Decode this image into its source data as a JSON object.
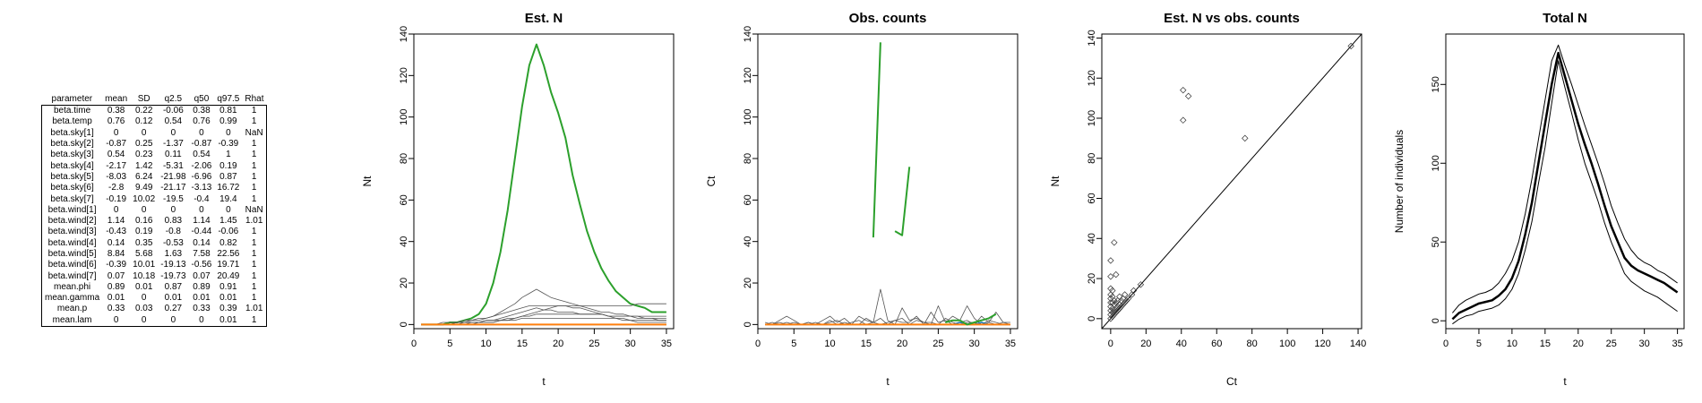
{
  "table": {
    "headers": [
      "parameter",
      "mean",
      "SD",
      "q2.5",
      "q50",
      "q97.5",
      "Rhat"
    ],
    "rows": [
      [
        "beta.time",
        "0.38",
        "0.22",
        "-0.06",
        "0.38",
        "0.81",
        "1"
      ],
      [
        "beta.temp",
        "0.76",
        "0.12",
        "0.54",
        "0.76",
        "0.99",
        "1"
      ],
      [
        "beta.sky[1]",
        "0",
        "0",
        "0",
        "0",
        "0",
        "NaN"
      ],
      [
        "beta.sky[2]",
        "-0.87",
        "0.25",
        "-1.37",
        "-0.87",
        "-0.39",
        "1"
      ],
      [
        "beta.sky[3]",
        "0.54",
        "0.23",
        "0.11",
        "0.54",
        "1",
        "1"
      ],
      [
        "beta.sky[4]",
        "-2.17",
        "1.42",
        "-5.31",
        "-2.06",
        "0.19",
        "1"
      ],
      [
        "beta.sky[5]",
        "-8.03",
        "6.24",
        "-21.98",
        "-6.96",
        "0.87",
        "1"
      ],
      [
        "beta.sky[6]",
        "-2.8",
        "9.49",
        "-21.17",
        "-3.13",
        "16.72",
        "1"
      ],
      [
        "beta.sky[7]",
        "-0.19",
        "10.02",
        "-19.5",
        "-0.4",
        "19.4",
        "1"
      ],
      [
        "beta.wind[1]",
        "0",
        "0",
        "0",
        "0",
        "0",
        "NaN"
      ],
      [
        "beta.wind[2]",
        "1.14",
        "0.16",
        "0.83",
        "1.14",
        "1.45",
        "1.01"
      ],
      [
        "beta.wind[3]",
        "-0.43",
        "0.19",
        "-0.8",
        "-0.44",
        "-0.06",
        "1"
      ],
      [
        "beta.wind[4]",
        "0.14",
        "0.35",
        "-0.53",
        "0.14",
        "0.82",
        "1"
      ],
      [
        "beta.wind[5]",
        "8.84",
        "5.68",
        "1.63",
        "7.58",
        "22.56",
        "1"
      ],
      [
        "beta.wind[6]",
        "-0.39",
        "10.01",
        "-19.13",
        "-0.56",
        "19.71",
        "1"
      ],
      [
        "beta.wind[7]",
        "0.07",
        "10.18",
        "-19.73",
        "0.07",
        "20.49",
        "1"
      ],
      [
        "mean.phi",
        "0.89",
        "0.01",
        "0.87",
        "0.89",
        "0.91",
        "1"
      ],
      [
        "mean.gamma",
        "0.01",
        "0",
        "0.01",
        "0.01",
        "0.01",
        "1"
      ],
      [
        "mean.p",
        "0.33",
        "0.03",
        "0.27",
        "0.33",
        "0.39",
        "1.01"
      ],
      [
        "mean.lam",
        "0",
        "0",
        "0",
        "0",
        "0.01",
        "1"
      ]
    ]
  },
  "chart_data": [
    {
      "type": "line",
      "title": "Est. N",
      "xlabel": "t",
      "ylabel": "Nt",
      "xlim": [
        0,
        36
      ],
      "ylim": [
        -2,
        140
      ],
      "xticks": [
        0,
        5,
        10,
        15,
        20,
        25,
        30,
        35
      ],
      "yticks": [
        0,
        20,
        40,
        60,
        80,
        100,
        120,
        140
      ],
      "grid": false,
      "x": [
        1,
        2,
        3,
        4,
        5,
        6,
        7,
        8,
        9,
        10,
        11,
        12,
        13,
        14,
        15,
        16,
        17,
        18,
        19,
        20,
        21,
        22,
        23,
        24,
        25,
        26,
        27,
        28,
        29,
        30,
        31,
        32,
        33,
        34,
        35
      ],
      "series": [
        {
          "color": "#2ca02c",
          "width": 2,
          "values": [
            0,
            0,
            0,
            0,
            1,
            1,
            2,
            3,
            5,
            10,
            20,
            35,
            55,
            80,
            105,
            125,
            135,
            125,
            112,
            102,
            90,
            72,
            58,
            45,
            35,
            27,
            21,
            16,
            13,
            10,
            9,
            8,
            6,
            6,
            6
          ]
        },
        {
          "color": "#555555",
          "width": 0.8,
          "values": [
            0,
            0,
            0,
            0,
            0,
            1,
            1,
            2,
            2,
            3,
            4,
            6,
            8,
            10,
            13,
            15,
            17,
            15,
            13,
            12,
            11,
            10,
            9,
            8,
            7,
            6,
            6,
            5,
            5,
            4,
            4,
            3,
            3,
            2,
            2
          ]
        },
        {
          "color": "#555555",
          "width": 0.8,
          "values": [
            0,
            0,
            0,
            1,
            1,
            1,
            2,
            2,
            3,
            3,
            4,
            5,
            6,
            7,
            8,
            9,
            9,
            9,
            9,
            9,
            9,
            9,
            9,
            9,
            9,
            9,
            9,
            9,
            9,
            9,
            10,
            10,
            10,
            10,
            10
          ]
        },
        {
          "color": "#555555",
          "width": 0.8,
          "values": [
            0,
            0,
            0,
            0,
            0,
            0,
            1,
            1,
            1,
            2,
            2,
            3,
            4,
            5,
            6,
            7,
            8,
            7,
            7,
            6,
            6,
            6,
            5,
            5,
            5,
            5,
            4,
            4,
            4,
            4,
            3,
            3,
            3,
            3,
            3
          ]
        },
        {
          "color": "#555555",
          "width": 0.8,
          "values": [
            0,
            0,
            0,
            0,
            0,
            1,
            1,
            1,
            1,
            2,
            2,
            2,
            3,
            3,
            4,
            4,
            5,
            5,
            5,
            5,
            5,
            5,
            5,
            5,
            5,
            5,
            4,
            4,
            4,
            4,
            4,
            4,
            4,
            4,
            4
          ]
        },
        {
          "color": "#555555",
          "width": 0.8,
          "values": [
            0,
            0,
            0,
            0,
            0,
            0,
            0,
            0,
            1,
            1,
            1,
            2,
            2,
            3,
            4,
            5,
            6,
            7,
            8,
            9,
            9,
            8,
            8,
            7,
            6,
            5,
            4,
            3,
            2,
            2,
            1,
            1,
            1,
            1,
            1
          ]
        },
        {
          "color": "#555555",
          "width": 0.8,
          "values": [
            0,
            0,
            0,
            0,
            0,
            0,
            0,
            1,
            1,
            1,
            1,
            2,
            2,
            2,
            3,
            3,
            3,
            3,
            3,
            3,
            3,
            3,
            3,
            3,
            3,
            3,
            3,
            3,
            3,
            2,
            2,
            2,
            2,
            2,
            2
          ]
        },
        {
          "color": "#1f77b4",
          "width": 1.5,
          "values": [
            0,
            0,
            0,
            0,
            0,
            0,
            0,
            0,
            0,
            0,
            0,
            0,
            0,
            0,
            0,
            0,
            0,
            0,
            0,
            0,
            0,
            0,
            0,
            0,
            0,
            0,
            0,
            0,
            0,
            0,
            0,
            0,
            0,
            0,
            0
          ]
        },
        {
          "color": "#ff7f0e",
          "width": 2,
          "values": [
            0,
            0,
            0,
            0,
            0,
            0,
            0,
            0,
            0,
            0,
            0,
            0,
            0,
            0,
            0,
            0,
            0,
            0,
            0,
            0,
            0,
            0,
            0,
            0,
            0,
            0,
            0,
            0,
            0,
            0,
            0,
            0,
            0,
            0,
            0
          ]
        }
      ]
    },
    {
      "type": "line",
      "title": "Obs. counts",
      "xlabel": "t",
      "ylabel": "Ct",
      "xlim": [
        0,
        36
      ],
      "ylim": [
        -2,
        140
      ],
      "xticks": [
        0,
        5,
        10,
        15,
        20,
        25,
        30,
        35
      ],
      "yticks": [
        0,
        20,
        40,
        60,
        80,
        100,
        120,
        140
      ],
      "grid": false,
      "x": [
        1,
        2,
        3,
        4,
        5,
        6,
        7,
        8,
        9,
        10,
        11,
        12,
        13,
        14,
        15,
        16,
        17,
        18,
        19,
        20,
        21,
        22,
        23,
        24,
        25,
        26,
        27,
        28,
        29,
        30,
        31,
        32,
        33,
        34,
        35
      ],
      "series": [
        {
          "color": "#555555",
          "width": 0.8,
          "values": [
            1,
            0,
            2,
            4,
            2,
            0,
            1,
            0,
            2,
            4,
            1,
            3,
            0,
            4,
            2,
            1,
            17,
            2,
            0,
            8,
            2,
            3,
            1,
            0,
            9,
            1,
            4,
            2,
            9,
            3,
            0,
            1,
            6,
            1,
            1
          ]
        },
        {
          "color": "#555555",
          "width": 0.8,
          "values": [
            0,
            1,
            0,
            1,
            0,
            0,
            0,
            1,
            0,
            1,
            2,
            0,
            1,
            2,
            0,
            1,
            3,
            0,
            2,
            1,
            1,
            4,
            0,
            6,
            1,
            2,
            0,
            1,
            2,
            0,
            4,
            1,
            0,
            1,
            0
          ]
        },
        {
          "color": "#555555",
          "width": 0.8,
          "values": [
            0,
            0,
            1,
            0,
            1,
            0,
            1,
            0,
            0,
            2,
            0,
            1,
            0,
            0,
            3,
            1,
            0,
            1,
            2,
            3,
            0,
            2,
            1,
            1,
            0,
            3,
            1,
            0,
            1,
            1,
            0,
            2,
            1,
            0,
            0
          ]
        },
        {
          "color": "#1f77b4",
          "width": 1.5,
          "values": [
            0,
            0,
            0,
            0,
            0,
            0,
            0,
            0,
            0,
            0,
            0,
            0,
            0,
            0,
            0,
            0,
            0,
            0,
            0,
            0,
            0,
            0,
            0,
            0,
            0,
            0,
            0,
            1,
            0,
            0,
            1,
            0,
            0,
            0,
            0
          ]
        },
        {
          "color": "#ff7f0e",
          "width": 2,
          "values": [
            0,
            0,
            0,
            0,
            0,
            0,
            0,
            0,
            0,
            0,
            0,
            0,
            0,
            0,
            0,
            0,
            0,
            0,
            0,
            0,
            0,
            0,
            0,
            0,
            0,
            0,
            0,
            0,
            0,
            0,
            0,
            0,
            0,
            0,
            0
          ]
        },
        {
          "color": "#2ca02c",
          "width": 2,
          "values": [
            1,
            null,
            null,
            null,
            null,
            null,
            null,
            null,
            null,
            null,
            null,
            null,
            null,
            null,
            null,
            42,
            136,
            null,
            45,
            43,
            76,
            null,
            null,
            null,
            null,
            1,
            2,
            2,
            0,
            1,
            2,
            3,
            5,
            null,
            null
          ]
        }
      ]
    },
    {
      "type": "scatter",
      "title": "Est. N vs obs. counts",
      "xlabel": "Ct",
      "ylabel": "Nt",
      "xlim": [
        -5,
        142
      ],
      "ylim": [
        -5,
        142
      ],
      "xticks": [
        0,
        20,
        40,
        60,
        80,
        100,
        120,
        140
      ],
      "yticks": [
        0,
        20,
        40,
        60,
        80,
        100,
        120,
        140
      ],
      "grid": false,
      "reference_line": "y = x",
      "points": [
        [
          0,
          0
        ],
        [
          0,
          2
        ],
        [
          0,
          4
        ],
        [
          0,
          6
        ],
        [
          0,
          8
        ],
        [
          0,
          10
        ],
        [
          0,
          12
        ],
        [
          0,
          15
        ],
        [
          0,
          21
        ],
        [
          0,
          29
        ],
        [
          1,
          1
        ],
        [
          1,
          3
        ],
        [
          1,
          5
        ],
        [
          1,
          8
        ],
        [
          1,
          11
        ],
        [
          1,
          14
        ],
        [
          2,
          2
        ],
        [
          2,
          4
        ],
        [
          2,
          7
        ],
        [
          2,
          9
        ],
        [
          2,
          38
        ],
        [
          3,
          3
        ],
        [
          3,
          5
        ],
        [
          3,
          8
        ],
        [
          3,
          22
        ],
        [
          4,
          4
        ],
        [
          4,
          6
        ],
        [
          4,
          9
        ],
        [
          5,
          5
        ],
        [
          5,
          7
        ],
        [
          5,
          11
        ],
        [
          6,
          6
        ],
        [
          6,
          9
        ],
        [
          7,
          7
        ],
        [
          7,
          10
        ],
        [
          8,
          8
        ],
        [
          8,
          12
        ],
        [
          9,
          9
        ],
        [
          10,
          10
        ],
        [
          12,
          12
        ],
        [
          13,
          14
        ],
        [
          17,
          17
        ],
        [
          41,
          114
        ],
        [
          41,
          99
        ],
        [
          44,
          111
        ],
        [
          76,
          90
        ],
        [
          136,
          136
        ]
      ]
    },
    {
      "type": "line",
      "title": "Total N",
      "xlabel": "t",
      "ylabel": "Number of individuals",
      "xlim": [
        0,
        36
      ],
      "ylim": [
        -5,
        182
      ],
      "xticks": [
        0,
        5,
        10,
        15,
        20,
        25,
        30,
        35
      ],
      "yticks": [
        0,
        50,
        100,
        150
      ],
      "grid": false,
      "x": [
        1,
        2,
        3,
        4,
        5,
        6,
        7,
        8,
        9,
        10,
        11,
        12,
        13,
        14,
        15,
        16,
        17,
        18,
        19,
        20,
        21,
        22,
        23,
        24,
        25,
        26,
        27,
        28,
        29,
        30,
        31,
        32,
        33,
        34,
        35
      ],
      "series": [
        {
          "color": "#000000",
          "width": 2.5,
          "values": [
            1,
            5,
            7,
            9,
            11,
            12,
            13,
            16,
            20,
            27,
            38,
            55,
            75,
            100,
            125,
            150,
            170,
            155,
            140,
            125,
            112,
            100,
            87,
            73,
            60,
            50,
            40,
            35,
            32,
            30,
            28,
            26,
            24,
            21,
            18
          ]
        },
        {
          "color": "#000000",
          "width": 1,
          "values": [
            5,
            10,
            13,
            15,
            17,
            18,
            20,
            24,
            30,
            38,
            50,
            68,
            90,
            115,
            140,
            165,
            175,
            162,
            150,
            137,
            124,
            112,
            100,
            87,
            73,
            62,
            52,
            45,
            40,
            37,
            35,
            32,
            30,
            27,
            24
          ]
        },
        {
          "color": "#000000",
          "width": 1,
          "values": [
            -2,
            1,
            3,
            4,
            6,
            7,
            8,
            10,
            14,
            20,
            30,
            45,
            63,
            87,
            110,
            138,
            165,
            148,
            132,
            115,
            100,
            88,
            76,
            62,
            50,
            40,
            30,
            25,
            22,
            19,
            17,
            15,
            12,
            9,
            6
          ]
        }
      ]
    }
  ]
}
